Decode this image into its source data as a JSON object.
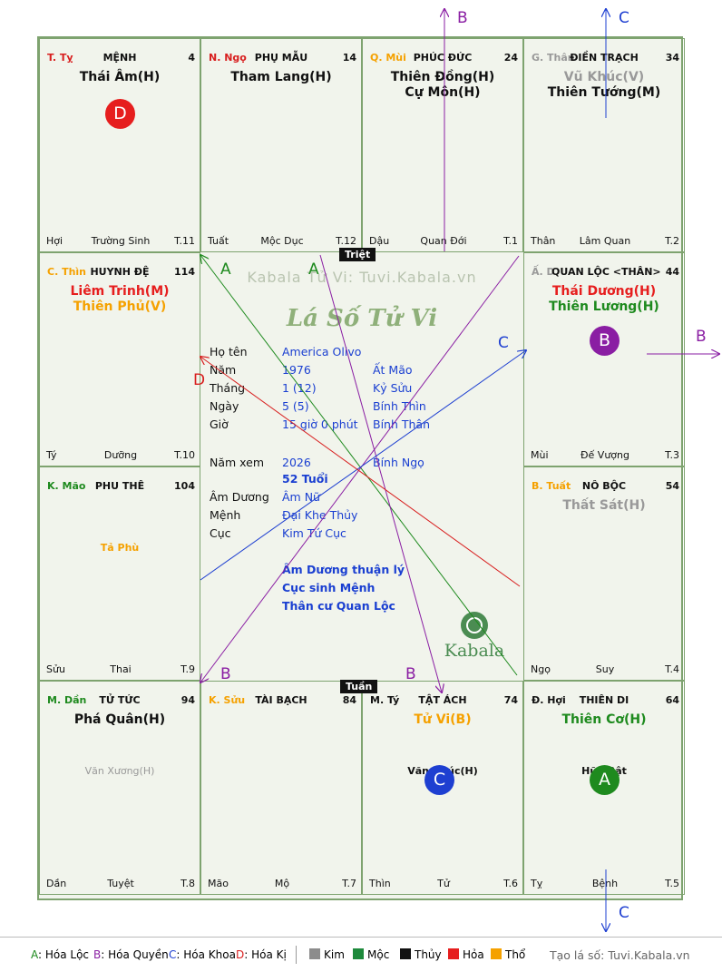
{
  "colors": {
    "hoa_loc": "#1e8a1e",
    "hoa_quyen": "#8a1ea3",
    "hoa_khoa": "#1e3fd1",
    "hoa_ki": "#d81e1e",
    "kim": "#8c8c8c",
    "moc": "#1e8a3c",
    "thuy": "#111111",
    "hoa": "#e61e1e",
    "tho": "#f5a100"
  },
  "cells": [
    {
      "id": "ty",
      "can": "T. Tỵ",
      "can_color": "#d81e1e",
      "palace": "MỆNH",
      "num": "4",
      "stars": [
        {
          "t": "Thái Âm(H)",
          "c": "#111"
        }
      ],
      "minor": [],
      "b": [
        "Hợi",
        "Trường Sinh",
        "T.11"
      ]
    },
    {
      "id": "ngo",
      "can": "N. Ngọ",
      "can_color": "#d81e1e",
      "palace": "PHỤ MẪU",
      "num": "14",
      "stars": [
        {
          "t": "Tham Lang(H)",
          "c": "#111"
        }
      ],
      "minor": [],
      "b": [
        "Tuất",
        "Mộc Dục",
        "T.12"
      ]
    },
    {
      "id": "mui",
      "can": "Q. Mùi",
      "can_color": "#f5a100",
      "palace": "PHÚC ĐỨC",
      "num": "24",
      "stars": [
        {
          "t": "Thiên Đồng(H)",
          "c": "#111"
        },
        {
          "t": "Cự Môn(H)",
          "c": "#111"
        }
      ],
      "minor": [],
      "b": [
        "Dậu",
        "Quan Đới",
        "T.1"
      ]
    },
    {
      "id": "than",
      "can": "G. Thân",
      "can_color": "#999",
      "palace": "ĐIỀN TRẠCH",
      "num": "34",
      "stars": [
        {
          "t": "Vũ Khúc(V)",
          "c": "#999"
        },
        {
          "t": "Thiên Tướng(M)",
          "c": "#111"
        }
      ],
      "minor": [],
      "b": [
        "Thân",
        "Lâm Quan",
        "T.2"
      ]
    },
    {
      "id": "thin",
      "can": "C. Thìn",
      "can_color": "#f5a100",
      "palace": "HUYNH ĐỆ",
      "num": "114",
      "stars": [
        {
          "t": "Liêm Trinh(M)",
          "c": "#e61e1e"
        },
        {
          "t": "Thiên Phủ(V)",
          "c": "#f5a100"
        }
      ],
      "minor": [],
      "b": [
        "Tý",
        "Dưỡng",
        "T.10"
      ]
    },
    {
      "id": "dau",
      "can": "Ấ. D",
      "can_color": "#999",
      "palace": "QUAN LỘC <THÂN>",
      "num": "44",
      "stars": [
        {
          "t": "Thái Dương(H)",
          "c": "#e61e1e"
        },
        {
          "t": "Thiên Lương(H)",
          "c": "#1e8a1e"
        }
      ],
      "minor": [],
      "b": [
        "Mùi",
        "Đế Vượng",
        "T.3"
      ]
    },
    {
      "id": "mao",
      "can": "K. Mão",
      "can_color": "#1e8a1e",
      "palace": "PHU THÊ",
      "num": "104",
      "stars": [],
      "minor": [
        {
          "t": "Tả Phù",
          "c": "#f5a100",
          "top": 82
        }
      ],
      "b": [
        "Sửu",
        "Thai",
        "T.9"
      ]
    },
    {
      "id": "tuat",
      "can": "B. Tuất",
      "can_color": "#f5a100",
      "palace": "NÔ BỘC",
      "num": "54",
      "stars": [
        {
          "t": "Thất Sát(H)",
          "c": "#999"
        }
      ],
      "minor": [],
      "b": [
        "Ngọ",
        "Suy",
        "T.4"
      ]
    },
    {
      "id": "dan",
      "can": "M. Dần",
      "can_color": "#1e8a1e",
      "palace": "TỬ TỨC",
      "num": "94",
      "stars": [
        {
          "t": "Phá Quân(H)",
          "c": "#111"
        }
      ],
      "minor": [
        {
          "t": "Văn Xương(H)",
          "c": "#999",
          "top": 84
        }
      ],
      "b": [
        "Dần",
        "Tuyệt",
        "T.8"
      ]
    },
    {
      "id": "suu",
      "can": "K. Sửu",
      "can_color": "#f5a100",
      "palace": "TÀI BẠCH",
      "num": "84",
      "stars": [],
      "minor": [],
      "b": [
        "Mão",
        "Mộ",
        "T.7"
      ]
    },
    {
      "id": "tys",
      "can": "M. Tý",
      "can_color": "#111",
      "palace": "TẬT ÁCH",
      "num": "74",
      "stars": [
        {
          "t": "Tử Vi(B)",
          "c": "#f5a100"
        }
      ],
      "minor": [
        {
          "t": "Văn Khúc(H)",
          "c": "#111",
          "top": 84
        }
      ],
      "b": [
        "Thìn",
        "Tử",
        "T.6"
      ]
    },
    {
      "id": "hoi",
      "can": "Đ. Hợi",
      "can_color": "#111",
      "palace": "THIÊN DI",
      "num": "64",
      "stars": [
        {
          "t": "Thiên Cơ(H)",
          "c": "#1e8a1e"
        }
      ],
      "minor": [
        {
          "t": "Hữu Bật",
          "c": "#111",
          "top": 84
        }
      ],
      "b": [
        "Tỵ",
        "Bệnh",
        "T.5"
      ]
    }
  ],
  "badges": [
    {
      "id": "ty",
      "letter": "D",
      "color": "#e61e1e"
    },
    {
      "id": "dau",
      "letter": "B",
      "color": "#8a1ea3"
    },
    {
      "id": "tys",
      "letter": "C",
      "color": "#1e3fd1"
    },
    {
      "id": "hoi",
      "letter": "A",
      "color": "#1e8a1e"
    }
  ],
  "center": {
    "watermark": "Kabala Tử Vi: Tuvi.Kabala.vn",
    "brand": "Lá Số Tử Vi",
    "logo_text": "Kabala",
    "trieu": "Triệt",
    "tuan": "Tuần",
    "rows": [
      {
        "k": "Họ tên",
        "v1": "America Olivo",
        "v2": ""
      },
      {
        "k": "Năm",
        "v1": "1976",
        "v2": "Ất Mão"
      },
      {
        "k": "Tháng",
        "v1": "1  (12)",
        "v2": "Kỷ Sửu"
      },
      {
        "k": "Ngày",
        "v1": "5  (5)",
        "v2": "Bính Thìn"
      },
      {
        "k": "Giờ",
        "v1": "15 giờ 0 phút",
        "v2": "Bính Thân"
      }
    ],
    "nam_xem": {
      "k": "Năm xem",
      "v1": "2026",
      "v2": "Bính Ngọ"
    },
    "tuoi": "52 Tuổi",
    "rows2": [
      {
        "k": "Âm Dương",
        "v": "Âm Nữ"
      },
      {
        "k": "Mệnh",
        "v": "Đại Khe Thủy"
      },
      {
        "k": "Cục",
        "v": "Kim Tứ Cục"
      }
    ],
    "notes": [
      "Âm Dương thuận lý",
      "Cục sinh Mệnh",
      "Thân cư Quan Lộc"
    ]
  },
  "arrow_labels": {
    "a": "A",
    "b": "B",
    "c": "C",
    "d": "D"
  },
  "legend": {
    "items": [
      {
        "letter": "A",
        "text": ": Hóa Lộc",
        "color": "#1e8a1e"
      },
      {
        "letter": "B",
        "text": ": Hóa Quyền",
        "color": "#8a1ea3"
      },
      {
        "letter": "C",
        "text": ": Hóa Khoa",
        "color": "#1e3fd1"
      },
      {
        "letter": "D",
        "text": ": Hóa Kị",
        "color": "#d81e1e"
      }
    ],
    "elements": [
      {
        "name": "Kim",
        "color": "#8c8c8c"
      },
      {
        "name": "Mộc",
        "color": "#1e8a3c"
      },
      {
        "name": "Thủy",
        "color": "#111111"
      },
      {
        "name": "Hỏa",
        "color": "#e61e1e"
      },
      {
        "name": "Thổ",
        "color": "#f5a100"
      }
    ],
    "credit": "Tạo lá số: Tuvi.Kabala.vn"
  }
}
